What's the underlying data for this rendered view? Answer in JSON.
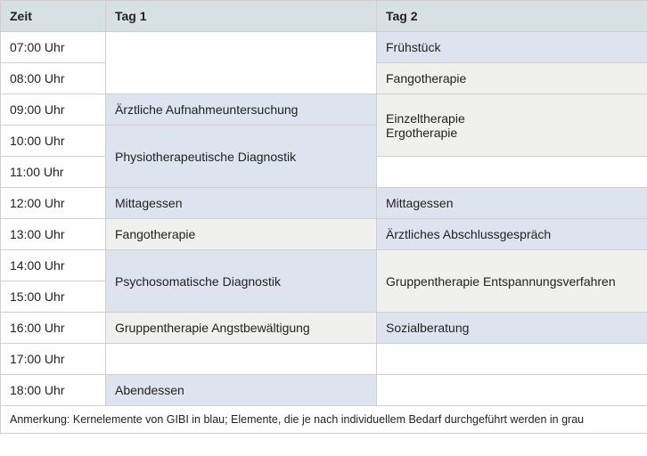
{
  "headers": {
    "time": "Zeit",
    "day1": "Tag 1",
    "day2": "Tag 2"
  },
  "times": [
    "07:00 Uhr",
    "08:00 Uhr",
    "09:00 Uhr",
    "10:00 Uhr",
    "11:00 Uhr",
    "12:00 Uhr",
    "13:00 Uhr",
    "14:00 Uhr",
    "15:00 Uhr",
    "16:00 Uhr",
    "17:00 Uhr",
    "18:00 Uhr"
  ],
  "day1": {
    "aufnahme": "Ärztliche Aufnahmeuntersuchung",
    "physio": "Physiotherapeutische Diagnostik",
    "mittag": "Mittagessen",
    "fango": "Fangotherapie",
    "psycho": "Psychosomatische Diagnostik",
    "gruppe_angst": "Gruppentherapie Angstbewältigung",
    "abend": "Abendessen"
  },
  "day2": {
    "fruehstueck": "Frühstück",
    "fango": "Fangotherapie",
    "einzel_line1": "Einzeltherapie",
    "einzel_line2": "Ergotherapie",
    "mittag": "Mittagessen",
    "abschluss": "Ärztliches Abschlussgespräch",
    "gruppe_entsp": "Gruppentherapie Entspannungsverfahren",
    "sozial": "Sozialberatung"
  },
  "note": "Anmerkung: Kernelemente von GIBI in blau; Elemente, die je nach individuellem Bedarf durchgeführt werden in grau",
  "colors": {
    "header_bg": "#d7e1e3",
    "core_blue": "#dee4ef",
    "optional_grey": "#f0f0ee",
    "border": "#d0d0d0"
  },
  "type": "table"
}
